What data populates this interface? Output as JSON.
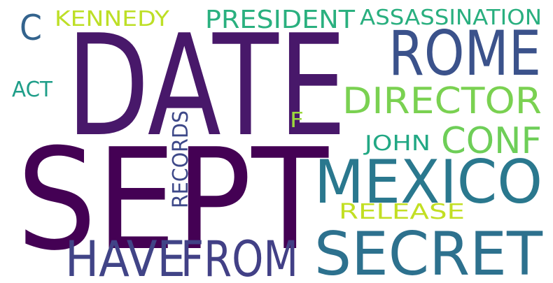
{
  "words": [
    {
      "text": "DATE",
      "color": "#48186a"
    },
    {
      "text": "SEPT",
      "color": "#440154"
    },
    {
      "text": "MEXICO",
      "color": "#2a788e"
    },
    {
      "text": "SECRET",
      "color": "#2d718e"
    },
    {
      "text": "HAVE",
      "color": "#414487"
    },
    {
      "text": "FROM",
      "color": "#424086"
    },
    {
      "text": "ROME",
      "color": "#3b528b"
    },
    {
      "text": "DIRECTOR",
      "color": "#7ad151"
    },
    {
      "text": "CONF",
      "color": "#6ece58"
    },
    {
      "text": "PRESIDENT",
      "color": "#2ab07f"
    },
    {
      "text": "ASSASSINATION",
      "color": "#29af7f"
    },
    {
      "text": "KENNEDY",
      "color": "#bddf26"
    },
    {
      "text": "RELEASE",
      "color": "#c2df23"
    },
    {
      "text": "JOHN",
      "color": "#22a884"
    },
    {
      "text": "RECORDS",
      "color": "#3e4989"
    },
    {
      "text": "C",
      "color": "#33638d"
    },
    {
      "text": "ACT",
      "color": "#1f9e89"
    },
    {
      "text": "F",
      "color": "#9bd93c"
    }
  ]
}
